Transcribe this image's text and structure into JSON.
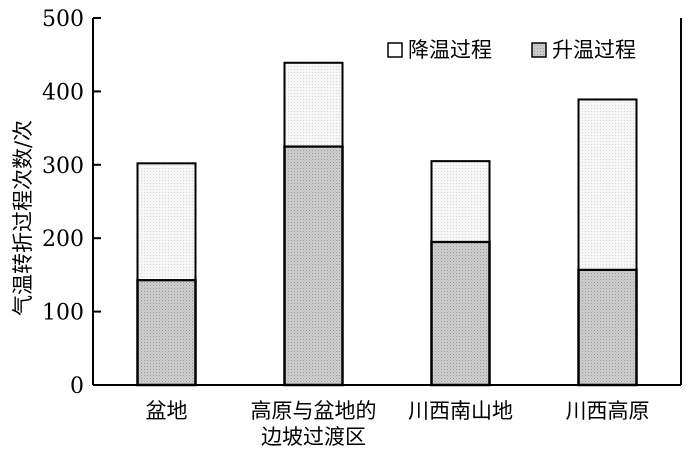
{
  "chart_data": {
    "type": "bar",
    "stacked": true,
    "title": "",
    "xlabel": "",
    "ylabel": "气温转折过程次数/次",
    "ylim": [
      0,
      500
    ],
    "yticks": [
      0,
      100,
      200,
      300,
      400,
      500
    ],
    "grid": false,
    "legend_position": "top-right",
    "categories": [
      [
        "盆地"
      ],
      [
        "高原与盆地的",
        "边坡过渡区"
      ],
      [
        "川西南山地"
      ],
      [
        "川西高原"
      ]
    ],
    "series": [
      {
        "name": "升温过程",
        "values": [
          143,
          325,
          195,
          157
        ],
        "color": "#c8c8c8",
        "pattern": "dense-dots"
      },
      {
        "name": "降温过程",
        "values": [
          159,
          114,
          110,
          232
        ],
        "color": "#f2f2f2",
        "pattern": "light-dots"
      }
    ],
    "legend_order": [
      "降温过程",
      "升温过程"
    ]
  }
}
